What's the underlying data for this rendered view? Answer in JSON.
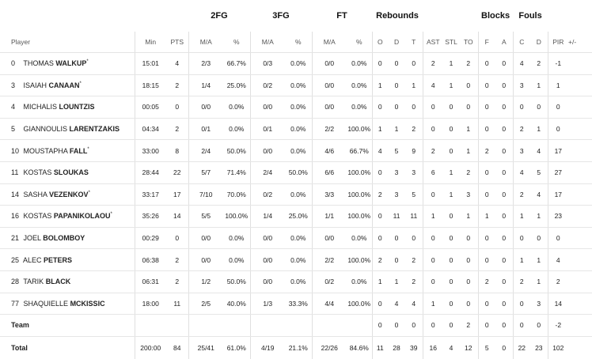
{
  "groups": {
    "twofg": "2FG",
    "threefg": "3FG",
    "ft": "FT",
    "rebounds": "Rebounds",
    "blocks": "Blocks",
    "fouls": "Fouls"
  },
  "headers": {
    "player": "Player",
    "min": "Min",
    "pts": "PTS",
    "fg2_ma": "M/A",
    "fg2_pct": "%",
    "fg3_ma": "M/A",
    "fg3_pct": "%",
    "ft_ma": "M/A",
    "ft_pct": "%",
    "reb_o": "O",
    "reb_d": "D",
    "reb_t": "T",
    "ast": "AST",
    "stl": "STL",
    "to": "TO",
    "blk_f": "F",
    "blk_a": "A",
    "foul_c": "C",
    "foul_d": "D",
    "pir": "PIR",
    "pm": "+/-"
  },
  "players": [
    {
      "num": "0",
      "first": "THOMAS",
      "last": "WALKUP",
      "star": "*",
      "min": "15:01",
      "pts": "4",
      "fg2_ma": "2/3",
      "fg2_pct": "66.7%",
      "fg3_ma": "0/3",
      "fg3_pct": "0.0%",
      "ft_ma": "0/0",
      "ft_pct": "0.0%",
      "o": "0",
      "d": "0",
      "t": "0",
      "ast": "2",
      "stl": "1",
      "to": "2",
      "bf": "0",
      "ba": "0",
      "fc": "4",
      "fd": "2",
      "pir": "-1"
    },
    {
      "num": "3",
      "first": "ISAIAH",
      "last": "CANAAN",
      "star": "*",
      "min": "18:15",
      "pts": "2",
      "fg2_ma": "1/4",
      "fg2_pct": "25.0%",
      "fg3_ma": "0/2",
      "fg3_pct": "0.0%",
      "ft_ma": "0/0",
      "ft_pct": "0.0%",
      "o": "1",
      "d": "0",
      "t": "1",
      "ast": "4",
      "stl": "1",
      "to": "0",
      "bf": "0",
      "ba": "0",
      "fc": "3",
      "fd": "1",
      "pir": "1"
    },
    {
      "num": "4",
      "first": "MICHALIS",
      "last": "LOUNTZIS",
      "star": "",
      "min": "00:05",
      "pts": "0",
      "fg2_ma": "0/0",
      "fg2_pct": "0.0%",
      "fg3_ma": "0/0",
      "fg3_pct": "0.0%",
      "ft_ma": "0/0",
      "ft_pct": "0.0%",
      "o": "0",
      "d": "0",
      "t": "0",
      "ast": "0",
      "stl": "0",
      "to": "0",
      "bf": "0",
      "ba": "0",
      "fc": "0",
      "fd": "0",
      "pir": "0"
    },
    {
      "num": "5",
      "first": "GIANNOULIS",
      "last": "LARENTZAKIS",
      "star": "",
      "min": "04:34",
      "pts": "2",
      "fg2_ma": "0/1",
      "fg2_pct": "0.0%",
      "fg3_ma": "0/1",
      "fg3_pct": "0.0%",
      "ft_ma": "2/2",
      "ft_pct": "100.0%",
      "o": "1",
      "d": "1",
      "t": "2",
      "ast": "0",
      "stl": "0",
      "to": "1",
      "bf": "0",
      "ba": "0",
      "fc": "2",
      "fd": "1",
      "pir": "0"
    },
    {
      "num": "10",
      "first": "MOUSTAPHA",
      "last": "FALL",
      "star": "*",
      "min": "33:00",
      "pts": "8",
      "fg2_ma": "2/4",
      "fg2_pct": "50.0%",
      "fg3_ma": "0/0",
      "fg3_pct": "0.0%",
      "ft_ma": "4/6",
      "ft_pct": "66.7%",
      "o": "4",
      "d": "5",
      "t": "9",
      "ast": "2",
      "stl": "0",
      "to": "1",
      "bf": "2",
      "ba": "0",
      "fc": "3",
      "fd": "4",
      "pir": "17"
    },
    {
      "num": "11",
      "first": "KOSTAS",
      "last": "SLOUKAS",
      "star": "",
      "min": "28:44",
      "pts": "22",
      "fg2_ma": "5/7",
      "fg2_pct": "71.4%",
      "fg3_ma": "2/4",
      "fg3_pct": "50.0%",
      "ft_ma": "6/6",
      "ft_pct": "100.0%",
      "o": "0",
      "d": "3",
      "t": "3",
      "ast": "6",
      "stl": "1",
      "to": "2",
      "bf": "0",
      "ba": "0",
      "fc": "4",
      "fd": "5",
      "pir": "27"
    },
    {
      "num": "14",
      "first": "SASHA",
      "last": "VEZENKOV",
      "star": "*",
      "min": "33:17",
      "pts": "17",
      "fg2_ma": "7/10",
      "fg2_pct": "70.0%",
      "fg3_ma": "0/2",
      "fg3_pct": "0.0%",
      "ft_ma": "3/3",
      "ft_pct": "100.0%",
      "o": "2",
      "d": "3",
      "t": "5",
      "ast": "0",
      "stl": "1",
      "to": "3",
      "bf": "0",
      "ba": "0",
      "fc": "2",
      "fd": "4",
      "pir": "17"
    },
    {
      "num": "16",
      "first": "KOSTAS",
      "last": "PAPANIKOLAOU",
      "star": "*",
      "min": "35:26",
      "pts": "14",
      "fg2_ma": "5/5",
      "fg2_pct": "100.0%",
      "fg3_ma": "1/4",
      "fg3_pct": "25.0%",
      "ft_ma": "1/1",
      "ft_pct": "100.0%",
      "o": "0",
      "d": "11",
      "t": "11",
      "ast": "1",
      "stl": "0",
      "to": "1",
      "bf": "1",
      "ba": "0",
      "fc": "1",
      "fd": "1",
      "pir": "23"
    },
    {
      "num": "21",
      "first": "JOEL",
      "last": "BOLOMBOY",
      "star": "",
      "min": "00:29",
      "pts": "0",
      "fg2_ma": "0/0",
      "fg2_pct": "0.0%",
      "fg3_ma": "0/0",
      "fg3_pct": "0.0%",
      "ft_ma": "0/0",
      "ft_pct": "0.0%",
      "o": "0",
      "d": "0",
      "t": "0",
      "ast": "0",
      "stl": "0",
      "to": "0",
      "bf": "0",
      "ba": "0",
      "fc": "0",
      "fd": "0",
      "pir": "0"
    },
    {
      "num": "25",
      "first": "ALEC",
      "last": "PETERS",
      "star": "",
      "min": "06:38",
      "pts": "2",
      "fg2_ma": "0/0",
      "fg2_pct": "0.0%",
      "fg3_ma": "0/0",
      "fg3_pct": "0.0%",
      "ft_ma": "2/2",
      "ft_pct": "100.0%",
      "o": "2",
      "d": "0",
      "t": "2",
      "ast": "0",
      "stl": "0",
      "to": "0",
      "bf": "0",
      "ba": "0",
      "fc": "1",
      "fd": "1",
      "pir": "4"
    },
    {
      "num": "28",
      "first": "TARIK",
      "last": "BLACK",
      "star": "",
      "min": "06:31",
      "pts": "2",
      "fg2_ma": "1/2",
      "fg2_pct": "50.0%",
      "fg3_ma": "0/0",
      "fg3_pct": "0.0%",
      "ft_ma": "0/2",
      "ft_pct": "0.0%",
      "o": "1",
      "d": "1",
      "t": "2",
      "ast": "0",
      "stl": "0",
      "to": "0",
      "bf": "2",
      "ba": "0",
      "fc": "2",
      "fd": "1",
      "pir": "2"
    },
    {
      "num": "77",
      "first": "SHAQUIELLE",
      "last": "MCKISSIC",
      "star": "",
      "min": "18:00",
      "pts": "11",
      "fg2_ma": "2/5",
      "fg2_pct": "40.0%",
      "fg3_ma": "1/3",
      "fg3_pct": "33.3%",
      "ft_ma": "4/4",
      "ft_pct": "100.0%",
      "o": "0",
      "d": "4",
      "t": "4",
      "ast": "1",
      "stl": "0",
      "to": "0",
      "bf": "0",
      "ba": "0",
      "fc": "0",
      "fd": "3",
      "pir": "14"
    }
  ],
  "team": {
    "label": "Team",
    "o": "0",
    "d": "0",
    "t": "0",
    "ast": "0",
    "stl": "0",
    "to": "2",
    "bf": "0",
    "ba": "0",
    "fc": "0",
    "fd": "0",
    "pir": "-2"
  },
  "total": {
    "label": "Total",
    "min": "200:00",
    "pts": "84",
    "fg2_ma": "25/41",
    "fg2_pct": "61.0%",
    "fg3_ma": "4/19",
    "fg3_pct": "21.1%",
    "ft_ma": "22/26",
    "ft_pct": "84.6%",
    "o": "11",
    "d": "28",
    "t": "39",
    "ast": "16",
    "stl": "4",
    "to": "12",
    "bf": "5",
    "ba": "0",
    "fc": "22",
    "fd": "23",
    "pir": "102"
  }
}
